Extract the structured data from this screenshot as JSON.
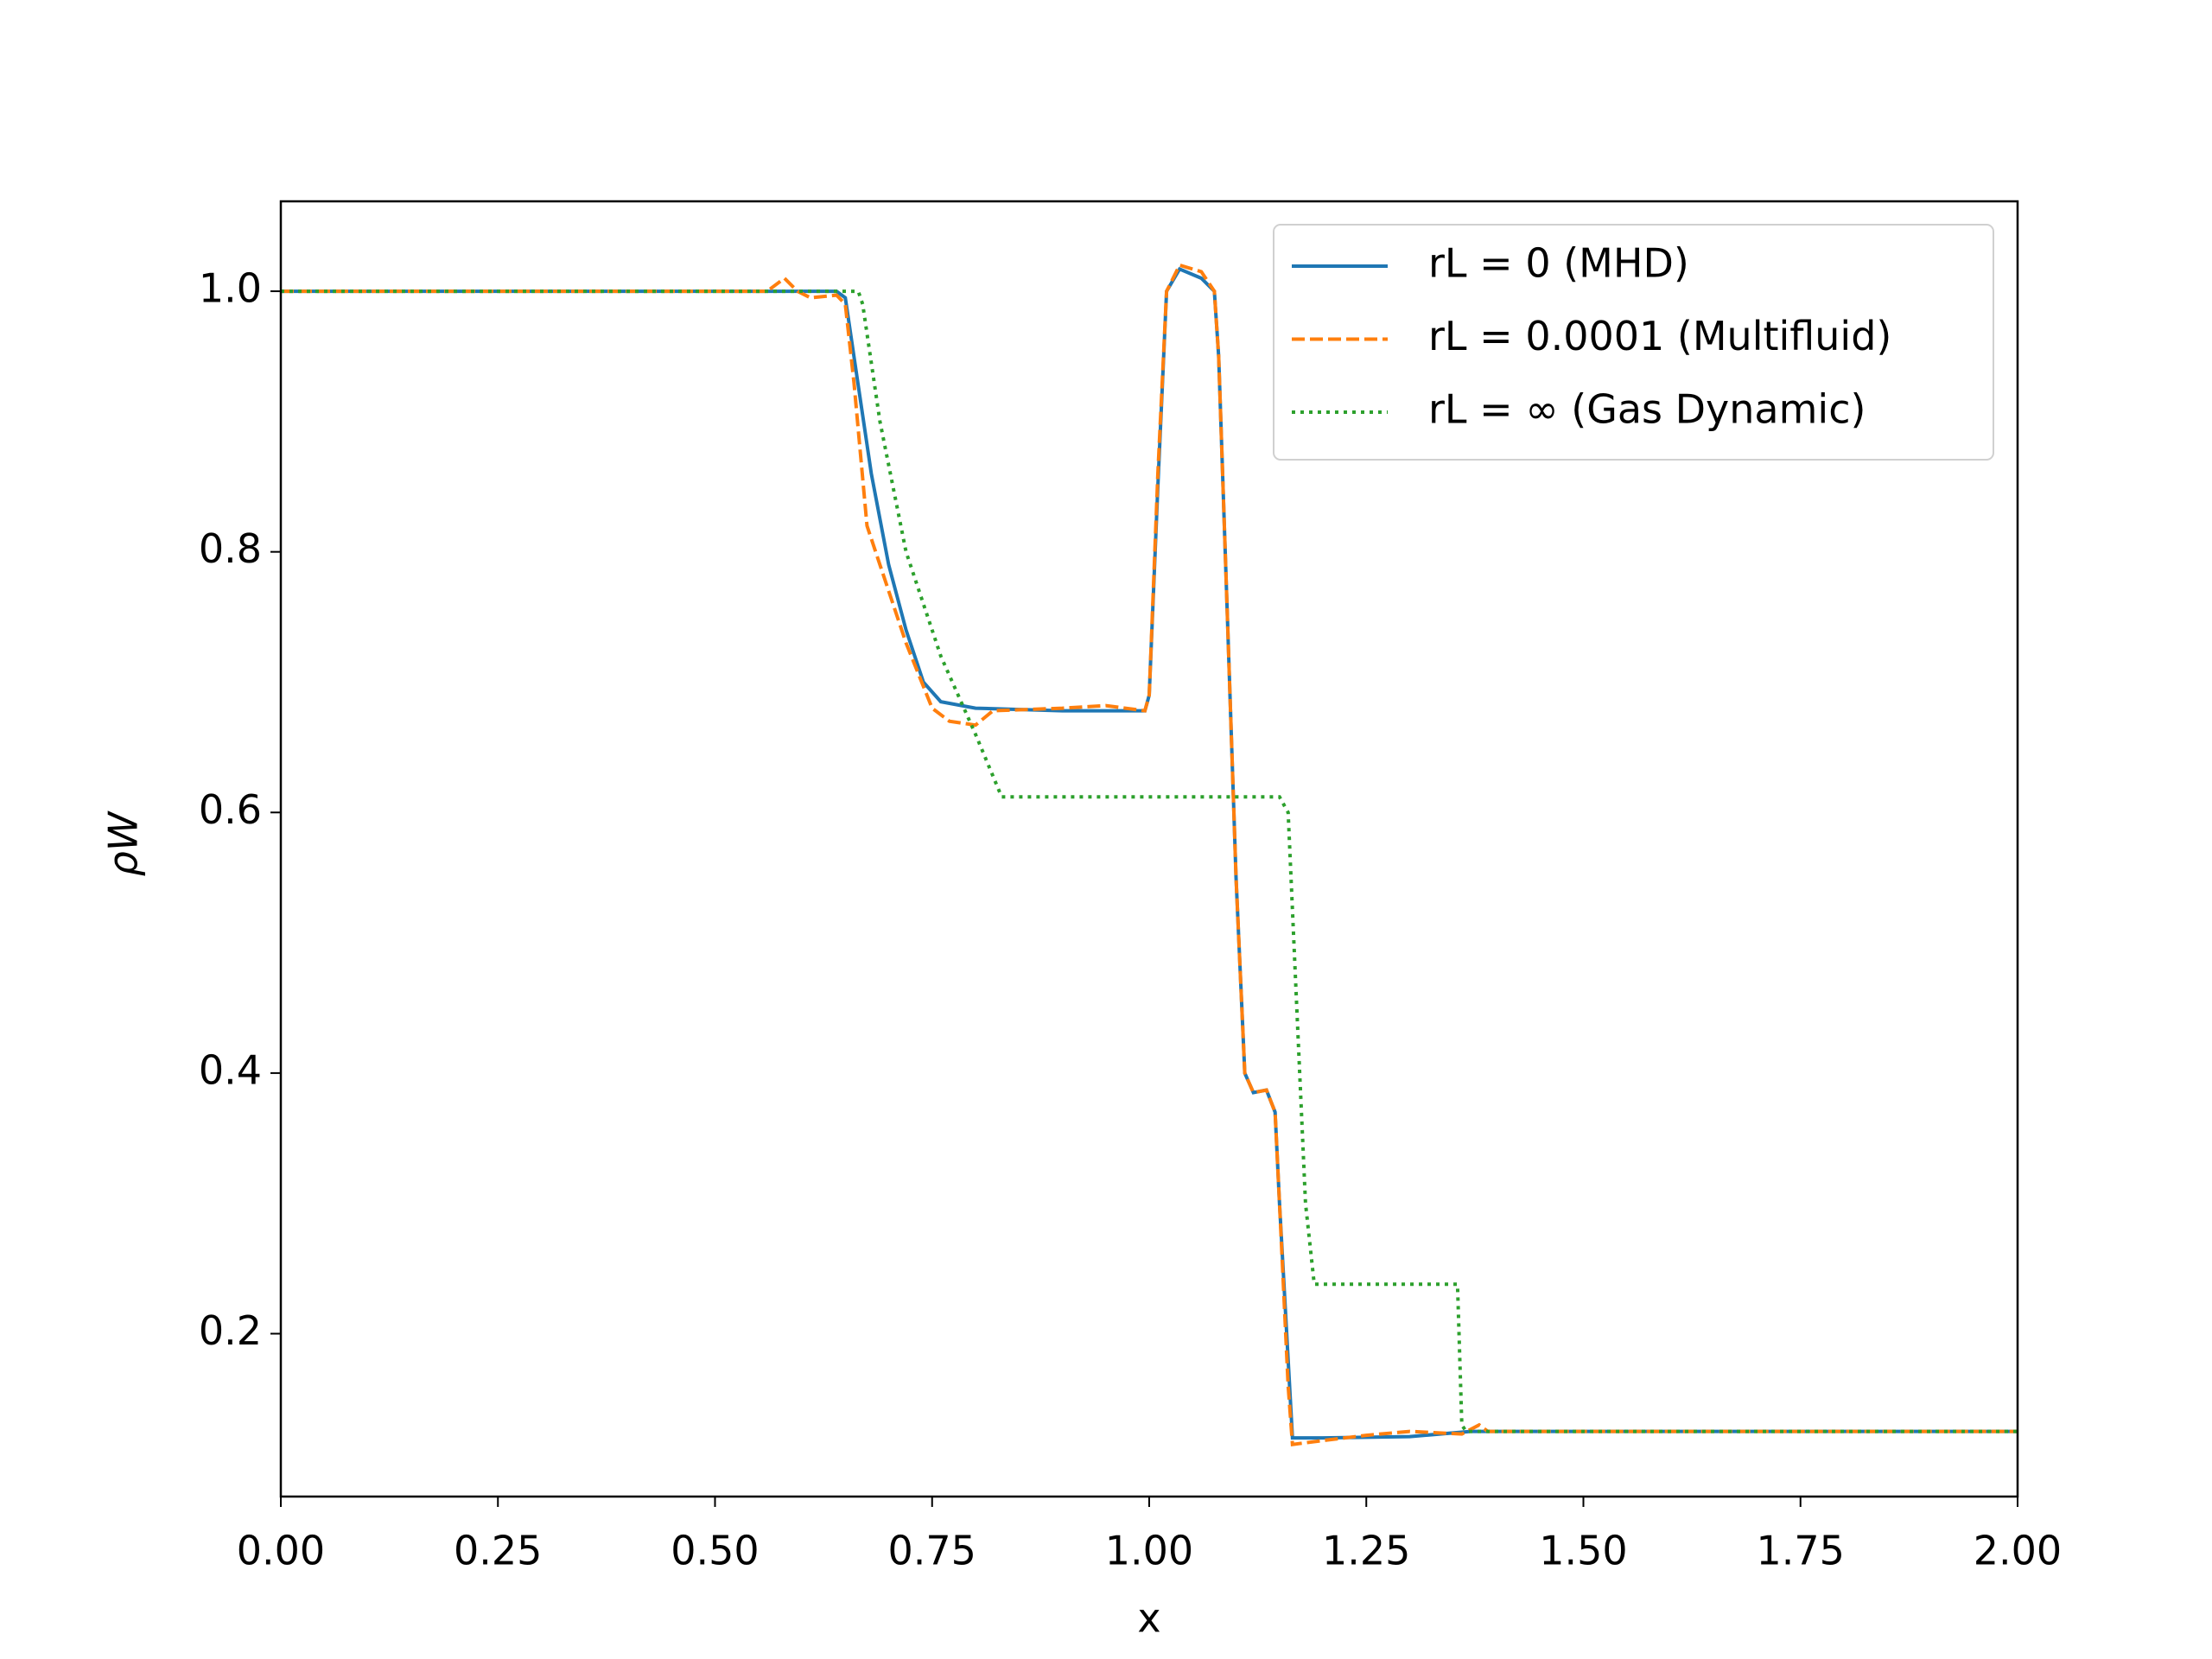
{
  "chart_data": {
    "type": "line",
    "xlabel": "x",
    "ylabel": "ρW",
    "xlim": [
      0,
      2
    ],
    "ylim": [
      0.075,
      1.069
    ],
    "xticks": [
      {
        "value": 0,
        "label": "0.00"
      },
      {
        "value": 0.25,
        "label": "0.25"
      },
      {
        "value": 0.5,
        "label": "0.50"
      },
      {
        "value": 0.75,
        "label": "0.75"
      },
      {
        "value": 1,
        "label": "1.00"
      },
      {
        "value": 1.25,
        "label": "1.25"
      },
      {
        "value": 1.5,
        "label": "1.50"
      },
      {
        "value": 1.75,
        "label": "1.75"
      },
      {
        "value": 2,
        "label": "2.00"
      }
    ],
    "yticks": [
      0.2,
      0.4,
      0.6,
      0.8,
      {
        "value": 1,
        "label": "1.0"
      }
    ],
    "legend": "upper right",
    "series": [
      {
        "name": "rL = 0 (MHD)",
        "color": "#1f77b4",
        "style": "solid",
        "x": [
          0,
          0.64,
          0.65,
          0.66,
          0.68,
          0.7,
          0.72,
          0.74,
          0.76,
          0.8,
          0.9,
          0.995,
          1.0,
          1.01,
          1.02,
          1.035,
          1.06,
          1.075,
          1.08,
          1.09,
          1.1,
          1.11,
          1.12,
          1.135,
          1.145,
          1.15,
          1.16,
          1.165,
          1.2,
          1.3,
          1.37,
          2.0
        ],
        "values": [
          1.0,
          1.0,
          0.995,
          0.95,
          0.86,
          0.79,
          0.74,
          0.7,
          0.685,
          0.68,
          0.678,
          0.678,
          0.69,
          0.85,
          1.0,
          1.017,
          1.01,
          1.0,
          0.95,
          0.75,
          0.55,
          0.4,
          0.385,
          0.387,
          0.37,
          0.3,
          0.18,
          0.12,
          0.12,
          0.121,
          0.125,
          0.125
        ]
      },
      {
        "name": "rL = 0.0001 (Multifluid)",
        "color": "#ff7f0e",
        "style": "dashed",
        "x": [
          0,
          0.56,
          0.58,
          0.595,
          0.61,
          0.64,
          0.65,
          0.66,
          0.675,
          0.69,
          0.72,
          0.75,
          0.77,
          0.8,
          0.82,
          0.9,
          0.95,
          0.995,
          1.0,
          1.01,
          1.02,
          1.035,
          1.06,
          1.075,
          1.08,
          1.09,
          1.1,
          1.11,
          1.12,
          1.135,
          1.145,
          1.15,
          1.16,
          1.165,
          1.2,
          1.25,
          1.3,
          1.36,
          1.38,
          1.39,
          2.0
        ],
        "values": [
          1.0,
          1.0,
          1.01,
          1.0,
          0.995,
          0.997,
          0.99,
          0.93,
          0.82,
          0.79,
          0.73,
          0.68,
          0.67,
          0.667,
          0.678,
          0.68,
          0.682,
          0.678,
          0.69,
          0.86,
          1.0,
          1.02,
          1.015,
          1.0,
          0.95,
          0.75,
          0.55,
          0.4,
          0.385,
          0.387,
          0.37,
          0.3,
          0.16,
          0.115,
          0.118,
          0.122,
          0.125,
          0.123,
          0.13,
          0.125,
          0.125
        ]
      },
      {
        "name": "rL = ∞ (Gas Dynamic)",
        "color": "#2ca02c",
        "style": "dotted",
        "x": [
          0,
          0.665,
          0.67,
          0.69,
          0.72,
          0.76,
          0.8,
          0.83,
          1.15,
          1.16,
          1.17,
          1.18,
          1.19,
          1.355,
          1.36,
          1.365,
          2.0
        ],
        "values": [
          1.0,
          1.0,
          0.99,
          0.9,
          0.8,
          0.72,
          0.66,
          0.612,
          0.612,
          0.6,
          0.45,
          0.3,
          0.238,
          0.238,
          0.13,
          0.125,
          0.125
        ]
      }
    ]
  }
}
